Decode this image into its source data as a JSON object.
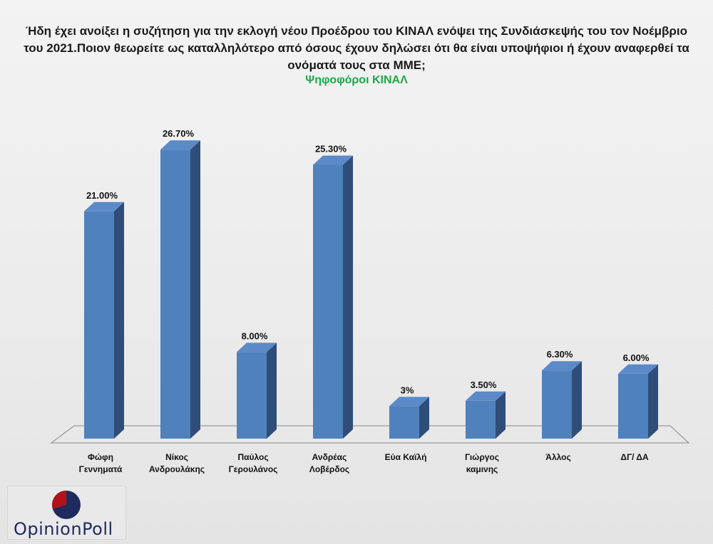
{
  "title": "Ήδη έχει ανοίξει η συζήτηση για την εκλογή νέου Προέδρου του ΚΙΝΑΛ ενόψει της Συνδιάσκεψής του τον Νοέμβριο του 2021.Ποιον θεωρείτε ως καταλληλότερο από όσους  έχουν δηλώσει ότι θα είναι υποψήφιοι ή έχουν αναφερθεί τα ονόματά τους  στα ΜΜΕ;",
  "subtitle": "Ψηφοφόροι ΚΙΝΑΛ",
  "logo": {
    "text": "OpinionPoll"
  },
  "colors": {
    "bar_front": "#4f81bd",
    "bar_side": "#2e4d78",
    "bar_top": "#5c8ac8",
    "subtitle": "#1aaa4a"
  },
  "chart_data": {
    "type": "bar",
    "categories": [
      [
        "Φώφη",
        "Γεννηματά"
      ],
      [
        "Νίκος",
        "Ανδρουλάκης"
      ],
      [
        "Παύλος",
        "Γερουλάνος"
      ],
      [
        "Ανδρέας",
        "Λοβέρδος"
      ],
      [
        "Εύα Καϊλή"
      ],
      [
        "Γιώργος",
        "καμινης"
      ],
      [
        "Άλλος"
      ],
      [
        "ΔΓ/ ΔΑ"
      ]
    ],
    "values": [
      21.0,
      26.7,
      8.0,
      25.3,
      3.0,
      3.5,
      6.3,
      6.0
    ],
    "value_labels": [
      "21.00%",
      "26.70%",
      "8.00%",
      "25.30%",
      "3%",
      "3.50%",
      "6.30%",
      "6.00%"
    ],
    "ylim": [
      0,
      30
    ],
    "grid": false,
    "legend": "none"
  }
}
